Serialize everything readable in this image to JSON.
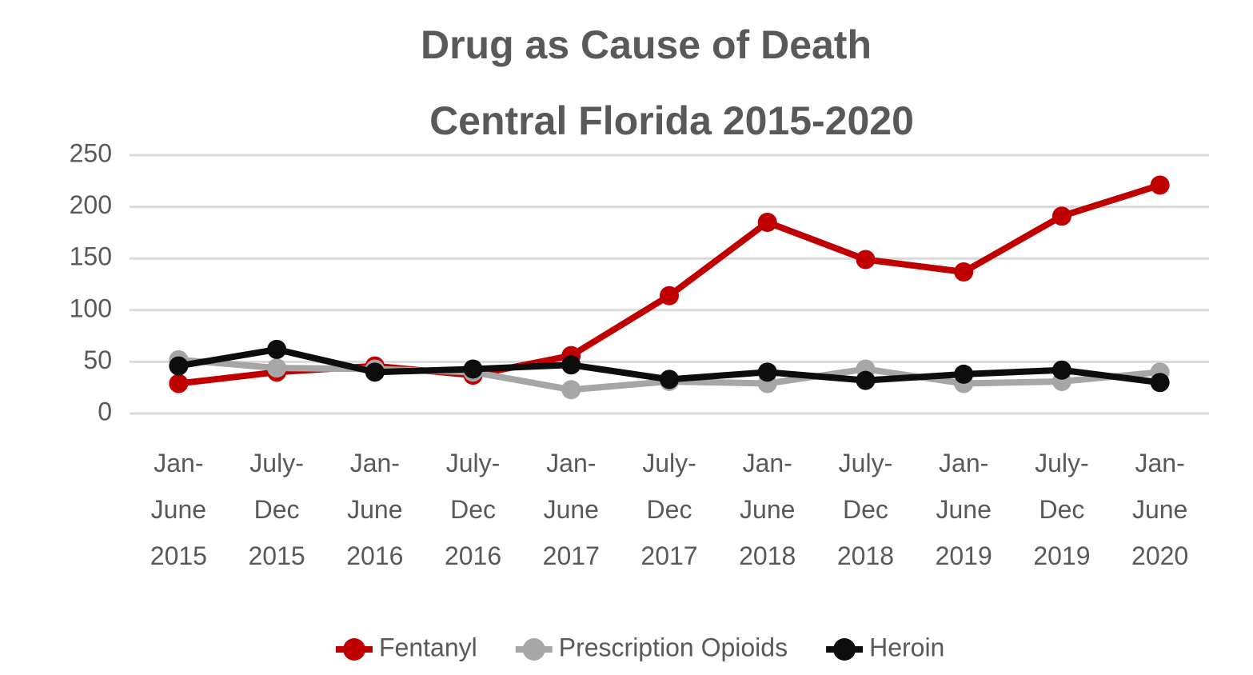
{
  "chart_data": {
    "type": "line",
    "title": "Drug as Cause of Death",
    "subtitle": "Central Florida 2015-2020",
    "categories": [
      "Jan- June 2015",
      "July- Dec 2015",
      "Jan- June 2016",
      "July- Dec 2016",
      "Jan- June 2017",
      "July- Dec 2017",
      "Jan- June 2018",
      "July- Dec 2018",
      "Jan- June 2019",
      "July- Dec 2019",
      "Jan- June 2020"
    ],
    "series": [
      {
        "name": "Fentanyl",
        "color": "#c00000",
        "values": [
          29,
          40,
          46,
          37,
          56,
          114,
          185,
          149,
          137,
          191,
          221
        ]
      },
      {
        "name": "Prescription Opioids",
        "color": "#a6a6a6",
        "values": [
          52,
          44,
          43,
          40,
          23,
          31,
          29,
          43,
          29,
          31,
          40
        ]
      },
      {
        "name": "Heroin",
        "color": "#0d0d0d",
        "values": [
          46,
          62,
          40,
          43,
          47,
          33,
          40,
          32,
          38,
          42,
          30
        ]
      }
    ],
    "ylim": [
      0,
      250
    ],
    "yticks": [
      0,
      50,
      100,
      150,
      200,
      250
    ],
    "grid": true,
    "legend": "bottom"
  }
}
